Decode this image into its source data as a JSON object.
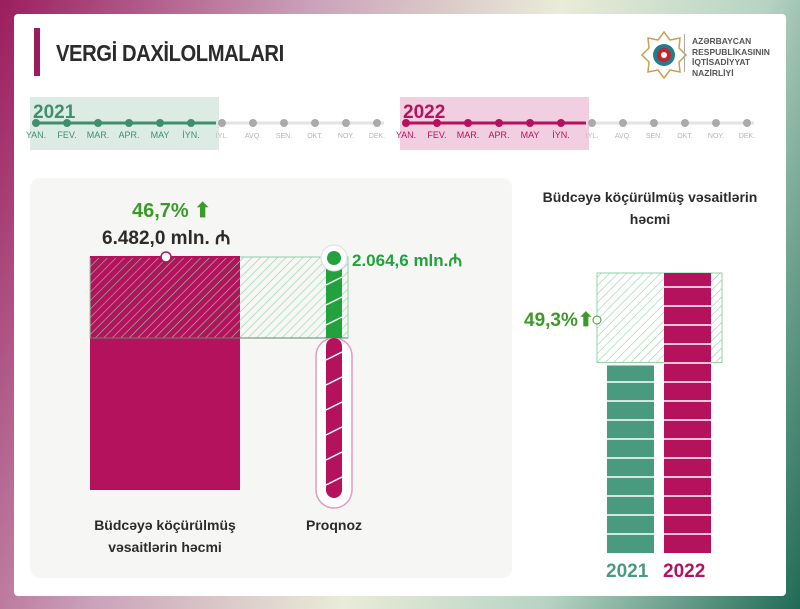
{
  "header": {
    "title": "VERGİ DAXİLOLMALARI",
    "logo_text": [
      "AZƏRBAYCAN",
      "RESPUBLİKASININ",
      "İQTİSADİYYAT",
      "NAZİRLİYİ"
    ]
  },
  "timeline": {
    "years": [
      {
        "label": "2021",
        "color": "#3f8f6f",
        "band": "#dcece5",
        "active_months": 6
      },
      {
        "label": "2022",
        "color": "#b5125e",
        "band": "#f2cfe0",
        "active_months": 6
      }
    ],
    "months": [
      "YAN.",
      "FEV.",
      "MAR.",
      "APR.",
      "MAY",
      "İYN.",
      "İYL.",
      "AVQ.",
      "SEN.",
      "OKT.",
      "NOY.",
      "DEK."
    ]
  },
  "main": {
    "growth": "46,7%",
    "actual_value": "6.482,0 mln. ₼",
    "excess_value": "2.064,6 mln.₼",
    "label_actual_1": "Büdcəyə köçürülmüş",
    "label_actual_2": "vəsaitlərin həcmi",
    "label_forecast": "Proqnoz"
  },
  "chart_data": {
    "type": "bar",
    "title": "Büdcəyə köçürülmüş vəsaitlərin həcmi",
    "categories": [
      "2021",
      "2022"
    ],
    "values": [
      100,
      149.3
    ],
    "annotation": "49,3%",
    "colors": {
      "2021": "#4a9a80",
      "2022": "#b5125e"
    }
  },
  "colors": {
    "magenta": "#b5125e",
    "green": "#3c9a2a",
    "teal": "#4a9a80"
  }
}
